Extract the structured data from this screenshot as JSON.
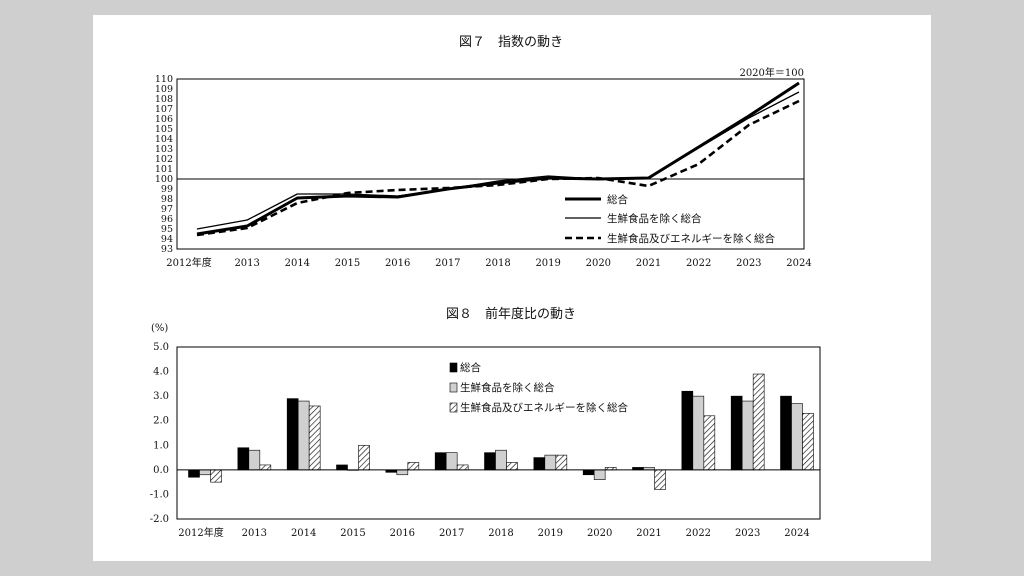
{
  "chart_data": [
    {
      "type": "line",
      "title": "図７　指数の動き",
      "note": "2020年＝100",
      "categories": [
        "2012年度",
        "2013",
        "2014",
        "2015",
        "2016",
        "2017",
        "2018",
        "2019",
        "2020",
        "2021",
        "2022",
        "2023",
        "2024"
      ],
      "ylim": [
        93,
        110
      ],
      "yticks": [
        93,
        94,
        95,
        96,
        97,
        98,
        99,
        100,
        101,
        102,
        103,
        104,
        105,
        106,
        107,
        108,
        109,
        110
      ],
      "reference_line": 100,
      "series": [
        {
          "name": "総合",
          "style": "thick",
          "values": [
            94.5,
            95.3,
            98.1,
            98.3,
            98.2,
            99.0,
            99.6,
            100.1,
            100.0,
            100.1,
            103.2,
            106.3,
            109.6
          ]
        },
        {
          "name": "生鮮食品を除く総合",
          "style": "thin",
          "values": [
            95.0,
            95.9,
            98.5,
            98.5,
            98.3,
            99.0,
            99.8,
            100.3,
            100.0,
            100.1,
            103.1,
            106.1,
            108.7
          ]
        },
        {
          "name": "生鮮食品及びエネルギーを除く総合",
          "style": "dashed",
          "values": [
            94.4,
            95.1,
            97.6,
            98.6,
            98.9,
            99.1,
            99.4,
            100.0,
            100.1,
            99.3,
            101.5,
            105.4,
            107.8
          ]
        }
      ],
      "legend_position": "bottom-right"
    },
    {
      "type": "bar",
      "title": "図８　前年度比の動き",
      "ylabel": "(%)",
      "categories": [
        "2012年度",
        "2013",
        "2014",
        "2015",
        "2016",
        "2017",
        "2018",
        "2019",
        "2020",
        "2021",
        "2022",
        "2023",
        "2024"
      ],
      "ylim": [
        -2.0,
        5.0
      ],
      "yticks": [
        "5.0",
        "4.0",
        "3.0",
        "2.0",
        "1.0",
        "0.0",
        "-1.0",
        "-2.0"
      ],
      "series": [
        {
          "name": "総合",
          "fill": "#000000",
          "values": [
            -0.3,
            0.9,
            2.9,
            0.2,
            -0.1,
            0.7,
            0.7,
            0.5,
            -0.2,
            0.1,
            3.2,
            3.0,
            3.0
          ]
        },
        {
          "name": "生鮮食品を除く総合",
          "fill": "#d0d0d0",
          "values": [
            -0.2,
            0.8,
            2.8,
            0.0,
            -0.2,
            0.7,
            0.8,
            0.6,
            -0.4,
            0.1,
            3.0,
            2.8,
            2.7
          ]
        },
        {
          "name": "生鮮食品及びエネルギーを除く総合",
          "fill": "hatch",
          "values": [
            -0.5,
            0.2,
            2.6,
            1.0,
            0.3,
            0.2,
            0.3,
            0.6,
            0.1,
            -0.8,
            2.2,
            3.9,
            2.3
          ]
        }
      ],
      "legend_position": "top-right"
    }
  ]
}
